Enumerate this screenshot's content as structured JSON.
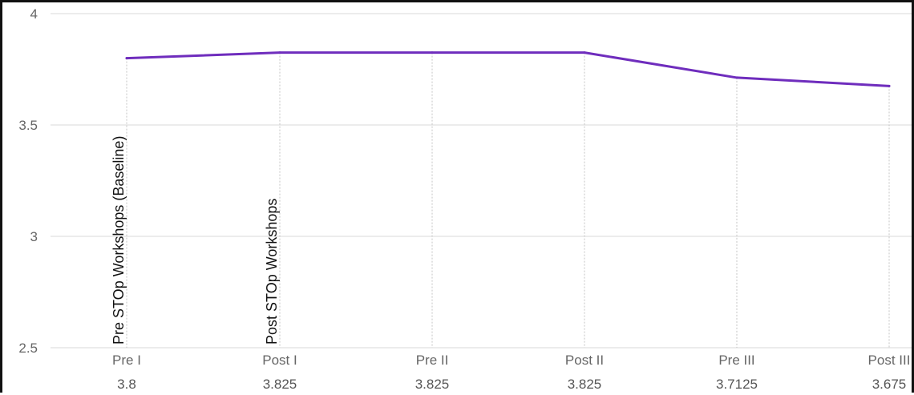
{
  "chart_data": {
    "type": "line",
    "categories": [
      "Pre I",
      "Post I",
      "Pre II",
      "Post II",
      "Pre III",
      "Post III"
    ],
    "series": [
      {
        "values": [
          3.8,
          3.825,
          3.825,
          3.825,
          3.7125,
          3.675
        ]
      }
    ],
    "value_labels": [
      "3.8",
      "3.825",
      "3.825",
      "3.825",
      "3.7125",
      "3.675"
    ],
    "ylim": [
      2.5,
      4
    ],
    "yticks": [
      2.5,
      3,
      3.5,
      4
    ],
    "ytick_labels": [
      "2.5",
      "3",
      "3.5",
      "4"
    ],
    "annotations": [
      {
        "category": "Pre I",
        "text": "Pre STOp Workshops (Baseline)"
      },
      {
        "category": "Post I",
        "text": "Post STOp Workshops"
      }
    ],
    "grid": true,
    "legend": "none",
    "colors": {
      "line": "#6f2dbd",
      "grid": "#d9d9d9",
      "text": "#666666",
      "frame": "#111111"
    }
  }
}
